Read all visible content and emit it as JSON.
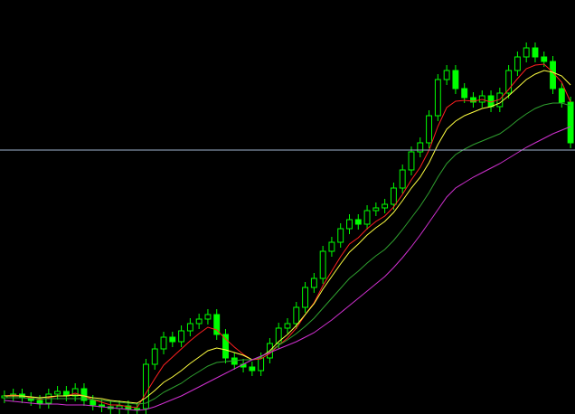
{
  "chart_data": {
    "type": "candlestick",
    "ylim": [
      0,
      458
    ],
    "candle_color": "#00ff00",
    "hline": {
      "value": 292,
      "color": "#9fb3d1"
    },
    "open": [
      18,
      20,
      22,
      18,
      15,
      12,
      22,
      25,
      20,
      28,
      15,
      10,
      8,
      6,
      9,
      5,
      6,
      55,
      72,
      85,
      80,
      92,
      100,
      105,
      110,
      88,
      62,
      55,
      52,
      48,
      62,
      78,
      95,
      100,
      118,
      140,
      150,
      180,
      190,
      205,
      215,
      210,
      225,
      228,
      232,
      250,
      270,
      290,
      300,
      330,
      370,
      380,
      360,
      350,
      345,
      352,
      340,
      355,
      380,
      395,
      405,
      395,
      390,
      360,
      345
    ],
    "high": [
      26,
      28,
      28,
      24,
      21,
      28,
      31,
      31,
      34,
      34,
      21,
      16,
      14,
      15,
      15,
      12,
      61,
      78,
      91,
      91,
      98,
      106,
      111,
      116,
      116,
      94,
      68,
      61,
      58,
      68,
      84,
      101,
      106,
      124,
      146,
      156,
      186,
      196,
      211,
      221,
      221,
      231,
      234,
      238,
      256,
      276,
      296,
      306,
      336,
      376,
      386,
      386,
      366,
      356,
      358,
      358,
      361,
      386,
      401,
      411,
      411,
      401,
      396,
      366,
      351
    ],
    "low": [
      12,
      14,
      12,
      9,
      6,
      6,
      16,
      14,
      14,
      9,
      4,
      2,
      0,
      0,
      0,
      0,
      0,
      49,
      66,
      74,
      74,
      86,
      94,
      99,
      82,
      56,
      49,
      46,
      42,
      42,
      56,
      72,
      89,
      94,
      112,
      134,
      144,
      174,
      184,
      199,
      204,
      204,
      219,
      222,
      226,
      244,
      264,
      284,
      294,
      324,
      364,
      354,
      344,
      339,
      339,
      334,
      334,
      349,
      374,
      389,
      389,
      384,
      354,
      339,
      294
    ],
    "close": [
      20,
      22,
      18,
      15,
      12,
      22,
      25,
      20,
      28,
      15,
      10,
      8,
      6,
      9,
      5,
      6,
      55,
      72,
      85,
      80,
      92,
      100,
      105,
      110,
      88,
      62,
      55,
      52,
      48,
      62,
      78,
      95,
      100,
      118,
      140,
      150,
      180,
      190,
      205,
      215,
      210,
      225,
      228,
      232,
      250,
      270,
      290,
      300,
      330,
      370,
      380,
      360,
      350,
      345,
      352,
      340,
      355,
      380,
      395,
      405,
      395,
      390,
      360,
      345,
      300
    ],
    "series": [
      {
        "color": "#ff2020",
        "values": [
          20,
          21,
          20,
          18,
          16,
          18,
          20,
          20,
          23,
          20,
          16,
          13,
          10,
          10,
          8,
          7,
          23,
          39,
          54,
          63,
          72,
          81,
          89,
          96,
          93,
          83,
          74,
          66,
          60,
          61,
          67,
          76,
          84,
          95,
          110,
          123,
          142,
          158,
          174,
          188,
          195,
          205,
          213,
          219,
          229,
          243,
          259,
          273,
          292,
          318,
          339,
          346,
          347,
          346,
          348,
          345,
          348,
          359,
          371,
          382,
          386,
          387,
          378,
          367,
          345
        ]
      },
      {
        "color": "#ffff40",
        "values": [
          20,
          20,
          20,
          19,
          18,
          19,
          20,
          20,
          21,
          20,
          18,
          17,
          15,
          14,
          13,
          12,
          18,
          26,
          35,
          41,
          48,
          56,
          63,
          70,
          73,
          71,
          68,
          65,
          60,
          63,
          70,
          80,
          88,
          98,
          110,
          122,
          138,
          152,
          166,
          179,
          188,
          198,
          206,
          213,
          223,
          236,
          250,
          262,
          278,
          298,
          315,
          324,
          330,
          334,
          338,
          340,
          344,
          352,
          361,
          370,
          376,
          380,
          378,
          374,
          364
        ]
      },
      {
        "color": "#2fa02f",
        "values": [
          18,
          18,
          18,
          17,
          17,
          17,
          17,
          17,
          17,
          17,
          16,
          15,
          14,
          13,
          12,
          11,
          12,
          17,
          24,
          29,
          34,
          41,
          47,
          53,
          57,
          58,
          59,
          60,
          60,
          63,
          69,
          76,
          82,
          89,
          97,
          106,
          117,
          128,
          139,
          150,
          158,
          167,
          175,
          182,
          192,
          204,
          217,
          230,
          245,
          262,
          277,
          287,
          293,
          298,
          302,
          306,
          310,
          317,
          325,
          332,
          338,
          342,
          344,
          344,
          341
        ]
      },
      {
        "color": "#d030d0",
        "values": [
          15,
          14,
          13,
          12,
          11,
          11,
          11,
          10,
          10,
          10,
          9,
          8,
          7,
          6,
          5,
          4,
          5,
          8,
          12,
          16,
          20,
          25,
          30,
          35,
          40,
          45,
          50,
          55,
          60,
          64,
          68,
          72,
          76,
          80,
          85,
          90,
          97,
          104,
          112,
          120,
          128,
          136,
          144,
          152,
          162,
          173,
          185,
          198,
          212,
          226,
          240,
          250,
          256,
          262,
          267,
          272,
          277,
          283,
          289,
          295,
          300,
          305,
          310,
          314,
          318
        ]
      }
    ]
  }
}
